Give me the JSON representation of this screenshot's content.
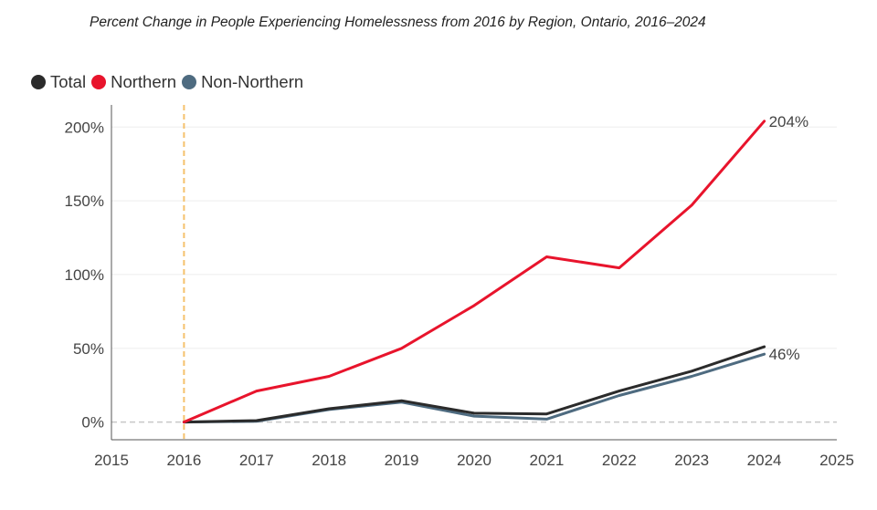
{
  "chart_data": {
    "type": "line",
    "title": "Percent Change in People Experiencing Homelessness from 2016 by Region, Ontario, 2016–2024",
    "xlabel": "",
    "ylabel": "",
    "xlim": [
      2015,
      2025
    ],
    "ylim": [
      -12,
      215
    ],
    "x_ticks": [
      "2015",
      "2016",
      "2017",
      "2018",
      "2019",
      "2020",
      "2021",
      "2022",
      "2023",
      "2024",
      "2025"
    ],
    "y_ticks": [
      {
        "value": 0,
        "label": "0%"
      },
      {
        "value": 50,
        "label": "50%"
      },
      {
        "value": 100,
        "label": "100%"
      },
      {
        "value": 150,
        "label": "150%"
      },
      {
        "value": 200,
        "label": "200%"
      }
    ],
    "grid": "horizontal",
    "legend_position": "top-left",
    "reference_line": {
      "x": 2016,
      "color": "#f5c16c"
    },
    "x": [
      2016,
      2017,
      2018,
      2019,
      2020,
      2021,
      2022,
      2023,
      2024
    ],
    "series": [
      {
        "name": "Total",
        "color": "#2b2b2b",
        "values": [
          0,
          1,
          9,
          14.5,
          6,
          5.5,
          21,
          34.5,
          51
        ]
      },
      {
        "name": "Northern",
        "color": "#e8142c",
        "values": [
          0,
          21,
          31,
          50,
          79,
          112,
          104.5,
          147,
          204
        ],
        "end_label": "204%"
      },
      {
        "name": "Non-Northern",
        "color": "#4e6b80",
        "values": [
          0,
          0.5,
          8.5,
          13.5,
          4,
          2,
          18,
          31,
          46
        ],
        "end_label": "46%"
      }
    ]
  }
}
